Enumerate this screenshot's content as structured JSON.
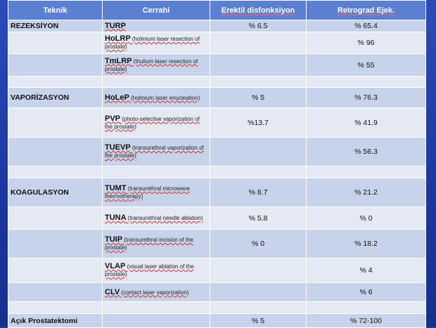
{
  "header": {
    "technique": "Teknik",
    "procedure": "Cerrahi",
    "ed": "Erektil disfonksiyon",
    "re": "Retrograd Ejek."
  },
  "rows": [
    {
      "tech": "REZEKSİYON",
      "abbr": "TURP",
      "desc": "",
      "ed": "% 6.5",
      "re": "% 65.4"
    },
    {
      "tech": "",
      "abbr": "HoLRP",
      "desc": " (holmium laser resection of prostate)",
      "ed": "",
      "re": "% 96"
    },
    {
      "tech": "",
      "abbr": "TmLRP",
      "desc": " (thulium laser resection of prostate)",
      "ed": "",
      "re": "% 55"
    },
    {
      "tech": "",
      "abbr": "",
      "desc": "",
      "ed": "",
      "re": ""
    },
    {
      "tech": "VAPORİZASYON",
      "abbr": "HoLeP",
      "desc": " (holmium laser enucleation)",
      "ed": "% 5",
      "re": "% 76.3"
    },
    {
      "tech": "",
      "abbr": "PVP",
      "desc": " (photo-selective vaporization of the prostate)",
      "ed": "%13.7",
      "re": "% 41.9"
    },
    {
      "tech": "",
      "abbr": "TUEVP",
      "desc": " (transurethral vaporization of the prostate)",
      "ed": "",
      "re": "% 56.3"
    },
    {
      "tech": "",
      "abbr": "",
      "desc": "",
      "ed": "",
      "re": ""
    },
    {
      "tech": "KOAGULASYON",
      "abbr": "TUMT",
      "desc": " (transurethral microwave thermotherapy)",
      "ed": "% 8.7",
      "re": "% 21.2"
    },
    {
      "tech": "",
      "abbr": "TUNA",
      "desc": " (transurethral needle ablation)",
      "ed": "% 5.8",
      "re": "% 0"
    },
    {
      "tech": "",
      "abbr": "TUIP",
      "desc": " (transurethral incision of the prostate)",
      "ed": "% 0",
      "re": "% 18.2"
    },
    {
      "tech": "",
      "abbr": "VLAP",
      "desc": " (visual laser ablation of the prostate)",
      "ed": "",
      "re": "% 4"
    },
    {
      "tech": "",
      "abbr": "CLV",
      "desc": " (contact laser vaporization)",
      "ed": "",
      "re": "% 6"
    },
    {
      "tech": "",
      "abbr": "",
      "desc": "",
      "ed": "",
      "re": ""
    },
    {
      "tech": "Açık Prostatektomi",
      "abbr": "",
      "desc": "",
      "ed": "% 5",
      "re": "% 72-100"
    }
  ]
}
